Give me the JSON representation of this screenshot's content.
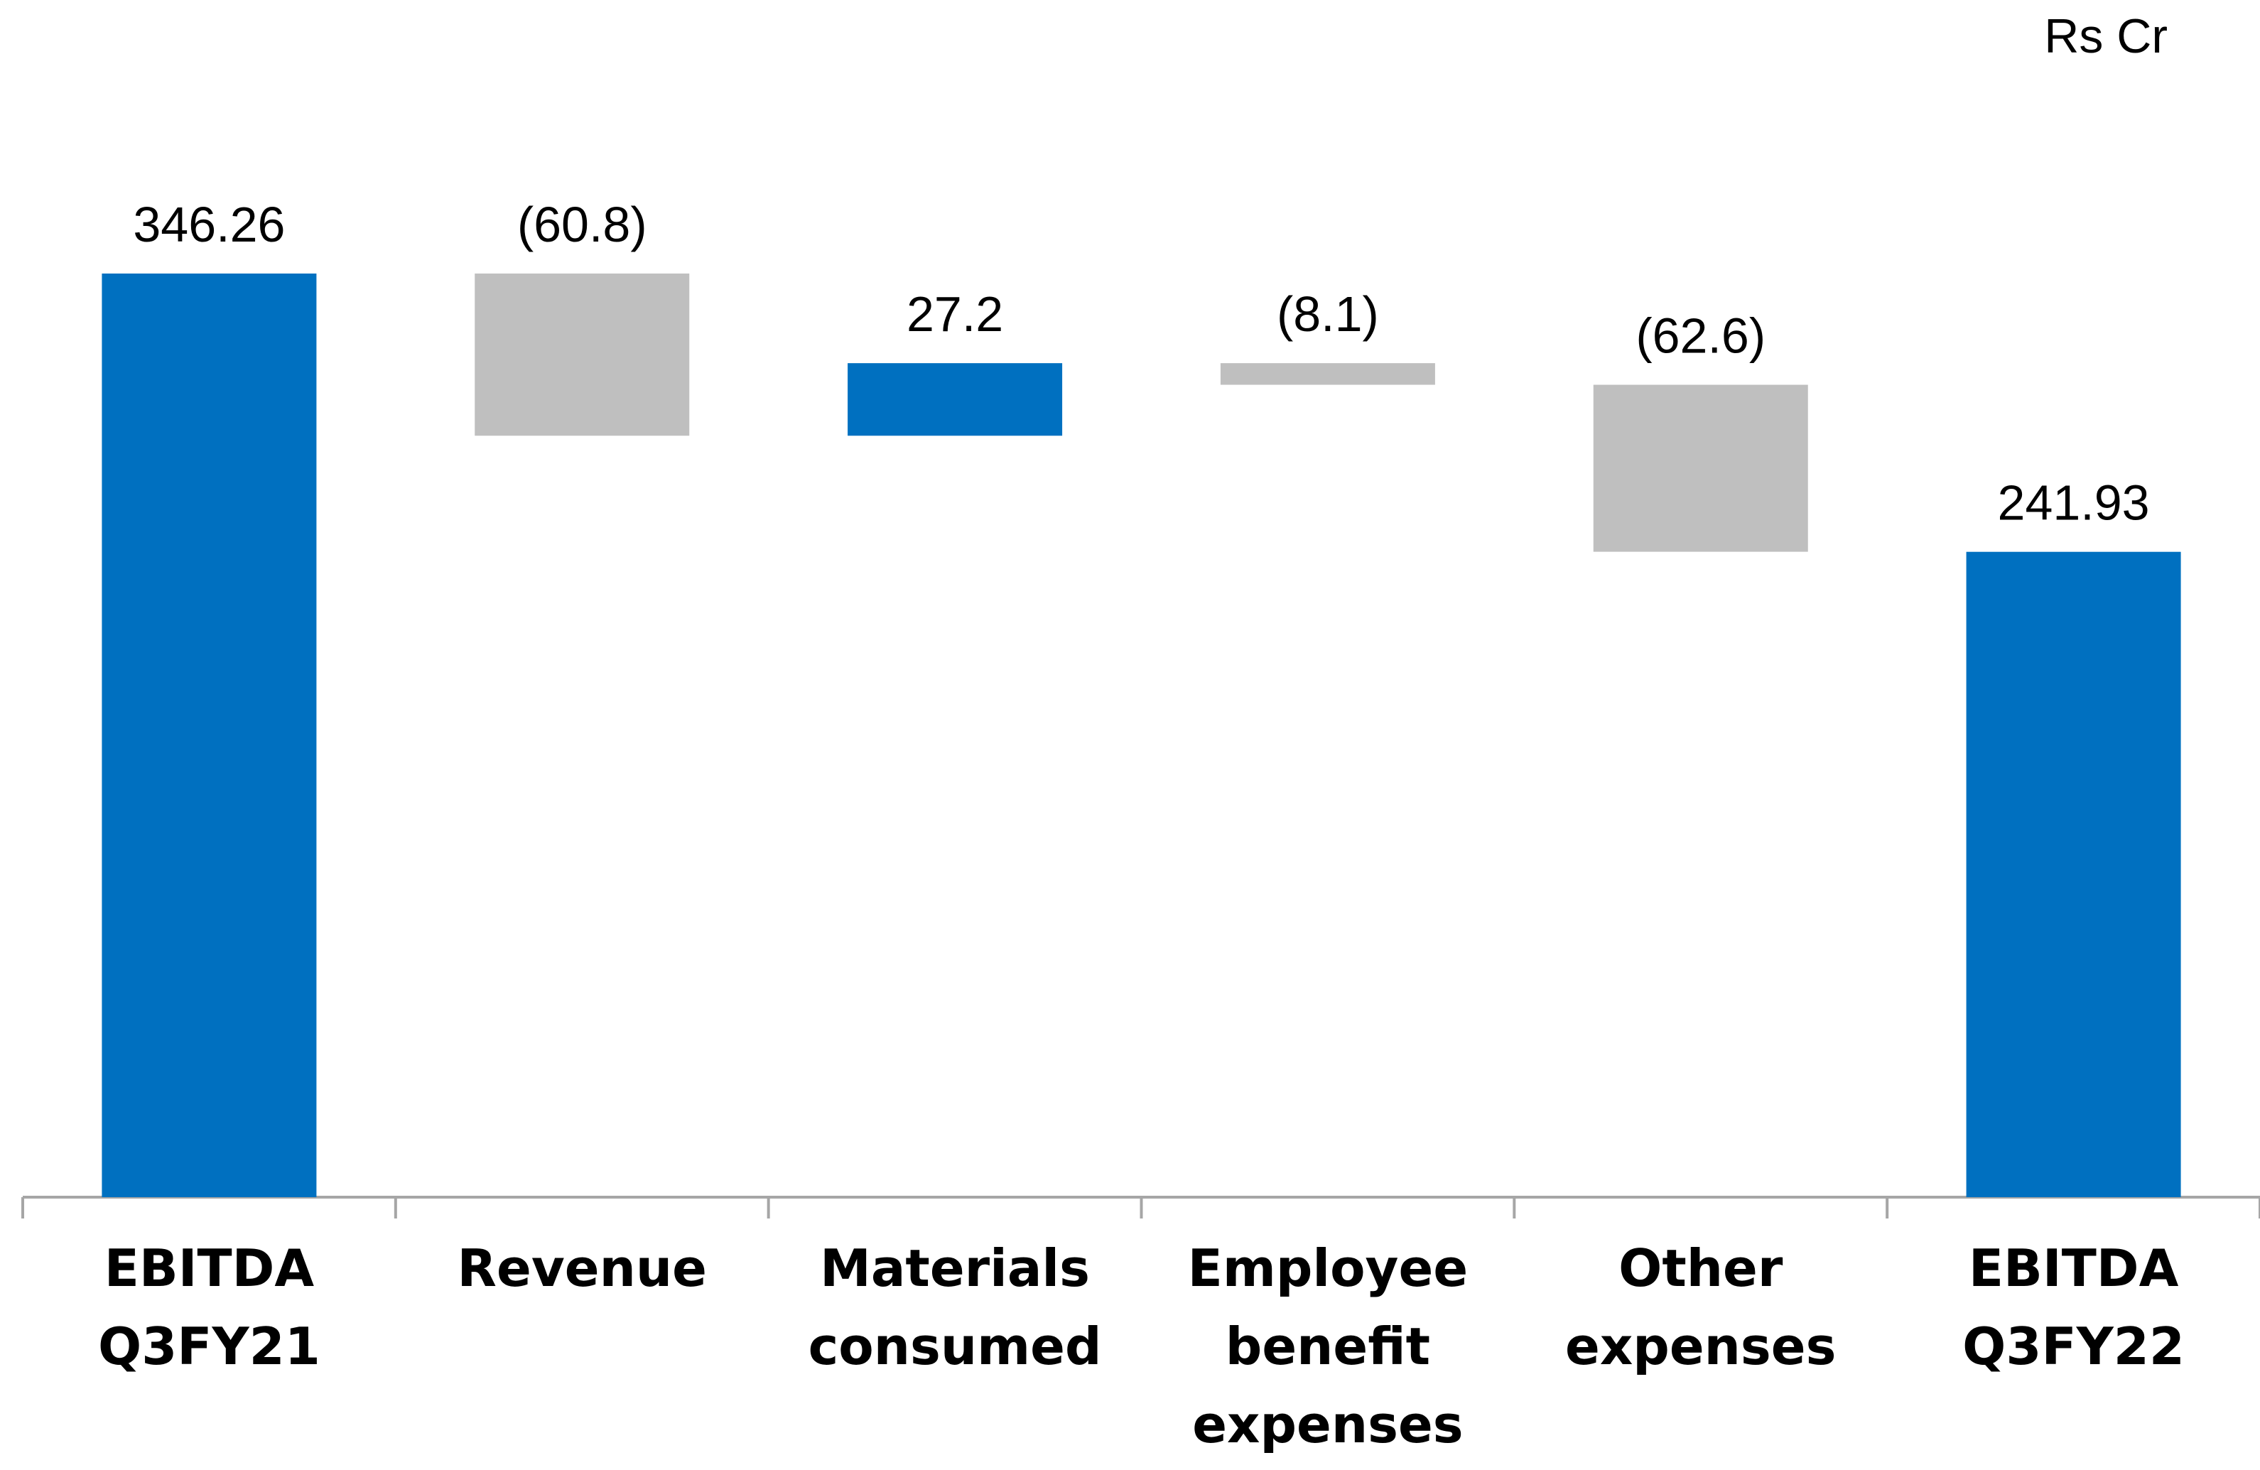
{
  "unit_label": "Rs Cr",
  "colors": {
    "total": "#0070C0",
    "increase": "#0070C0",
    "decrease": "#BFBFBF",
    "axis": "#A6A6A6"
  },
  "chart_data": {
    "type": "bar",
    "subtype": "waterfall",
    "title": "",
    "xlabel": "",
    "ylabel": "",
    "unit": "Rs Cr",
    "grid": false,
    "ylim": [
      0,
      346.26
    ],
    "categories": [
      [
        "EBITDA",
        "Q3FY21"
      ],
      [
        "Revenue"
      ],
      [
        "Materials",
        "consumed"
      ],
      [
        "Employee",
        "benefit",
        "expenses"
      ],
      [
        "Other",
        "expenses"
      ],
      [
        "EBITDA",
        "Q3FY22"
      ]
    ],
    "values": [
      346.26,
      -60.8,
      27.2,
      -8.1,
      -62.6,
      241.93
    ],
    "kinds": [
      "total",
      "change",
      "change",
      "change",
      "change",
      "total"
    ],
    "data_labels": [
      "346.26",
      "(60.8)",
      "27.2",
      "(8.1)",
      "(62.6)",
      "241.93"
    ]
  }
}
